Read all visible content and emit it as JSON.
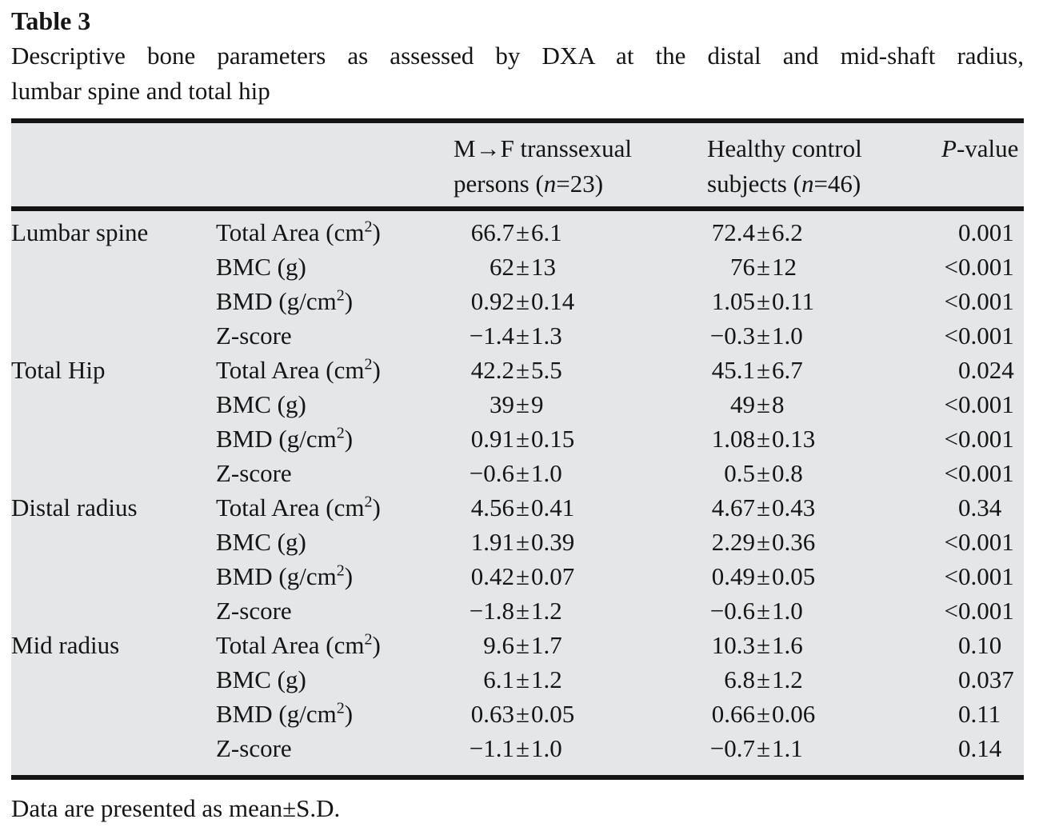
{
  "page": {
    "title": "Table 3",
    "caption_line1": "Descriptive bone parameters as assessed by DXA at the distal and mid-shaft radius,",
    "caption_line2": "lumbar spine and total hip",
    "footnote": "Data are presented as mean±S.D."
  },
  "symbols": {
    "pm": "±"
  },
  "header": {
    "mf_line1": "M→F transsexual",
    "mf_line2_pre": "persons (",
    "mf_n": "n",
    "mf_line2_post": "=23)",
    "hc_line1": "Healthy control",
    "hc_line2_pre": "subjects (",
    "hc_n": "n",
    "hc_line2_post": "=46)",
    "p_italic": "P",
    "p_rest": "-value"
  },
  "rows": [
    {
      "region": "Lumbar spine",
      "param_base": "Total Area (cm",
      "param_sup": "2",
      "param_close": ")",
      "m1": "66.7",
      "s1": "6.1",
      "m2": "72.4",
      "s2": "6.2",
      "p_prefix": "",
      "p": "0.001"
    },
    {
      "region": "",
      "param_base": "BMC (g)",
      "param_sup": "",
      "param_close": "",
      "m1": "62",
      "s1": "13",
      "m2": "76",
      "s2": "12",
      "p_prefix": "<",
      "p": "0.001"
    },
    {
      "region": "",
      "param_base": "BMD (g/cm",
      "param_sup": "2",
      "param_close": ")",
      "m1": "0.92",
      "s1": "0.14",
      "m2": "1.05",
      "s2": "0.11",
      "p_prefix": "<",
      "p": "0.001"
    },
    {
      "region": "",
      "param_base": "Z-score",
      "param_sup": "",
      "param_close": "",
      "m1": "−1.4",
      "s1": "1.3",
      "m2": "−0.3",
      "s2": "1.0",
      "p_prefix": "<",
      "p": "0.001"
    },
    {
      "region": "Total Hip",
      "param_base": "Total Area (cm",
      "param_sup": "2",
      "param_close": ")",
      "m1": "42.2",
      "s1": "5.5",
      "m2": "45.1",
      "s2": "6.7",
      "p_prefix": "",
      "p": "0.024"
    },
    {
      "region": "",
      "param_base": "BMC (g)",
      "param_sup": "",
      "param_close": "",
      "m1": "39",
      "s1": "9",
      "m2": "49",
      "s2": "8",
      "p_prefix": "<",
      "p": "0.001"
    },
    {
      "region": "",
      "param_base": "BMD (g/cm",
      "param_sup": "2",
      "param_close": ")",
      "m1": "0.91",
      "s1": "0.15",
      "m2": "1.08",
      "s2": "0.13",
      "p_prefix": "<",
      "p": "0.001"
    },
    {
      "region": "",
      "param_base": "Z-score",
      "param_sup": "",
      "param_close": "",
      "m1": "−0.6",
      "s1": "1.0",
      "m2": "0.5",
      "s2": "0.8",
      "p_prefix": "<",
      "p": "0.001"
    },
    {
      "region": "Distal radius",
      "param_base": "Total Area (cm",
      "param_sup": "2",
      "param_close": ")",
      "m1": "4.56",
      "s1": "0.41",
      "m2": "4.67",
      "s2": "0.43",
      "p_prefix": "",
      "p": "0.34"
    },
    {
      "region": "",
      "param_base": "BMC (g)",
      "param_sup": "",
      "param_close": "",
      "m1": "1.91",
      "s1": "0.39",
      "m2": "2.29",
      "s2": "0.36",
      "p_prefix": "<",
      "p": "0.001"
    },
    {
      "region": "",
      "param_base": "BMD (g/cm",
      "param_sup": "2",
      "param_close": ")",
      "m1": "0.42",
      "s1": "0.07",
      "m2": "0.49",
      "s2": "0.05",
      "p_prefix": "<",
      "p": "0.001"
    },
    {
      "region": "",
      "param_base": "Z-score",
      "param_sup": "",
      "param_close": "",
      "m1": "−1.8",
      "s1": "1.2",
      "m2": "−0.6",
      "s2": "1.0",
      "p_prefix": "<",
      "p": "0.001"
    },
    {
      "region": "Mid radius",
      "param_base": "Total Area (cm",
      "param_sup": "2",
      "param_close": ")",
      "m1": "9.6",
      "s1": "1.7",
      "m2": "10.3",
      "s2": "1.6",
      "p_prefix": "",
      "p": "0.10"
    },
    {
      "region": "",
      "param_base": "BMC (g)",
      "param_sup": "",
      "param_close": "",
      "m1": "6.1",
      "s1": "1.2",
      "m2": "6.8",
      "s2": "1.2",
      "p_prefix": "",
      "p": "0.037"
    },
    {
      "region": "",
      "param_base": "BMD (g/cm",
      "param_sup": "2",
      "param_close": ")",
      "m1": "0.63",
      "s1": "0.05",
      "m2": "0.66",
      "s2": "0.06",
      "p_prefix": "",
      "p": "0.11"
    },
    {
      "region": "",
      "param_base": "Z-score",
      "param_sup": "",
      "param_close": "",
      "m1": "−1.1",
      "s1": "1.0",
      "m2": "−0.7",
      "s2": "1.1",
      "p_prefix": "",
      "p": "0.14"
    }
  ]
}
